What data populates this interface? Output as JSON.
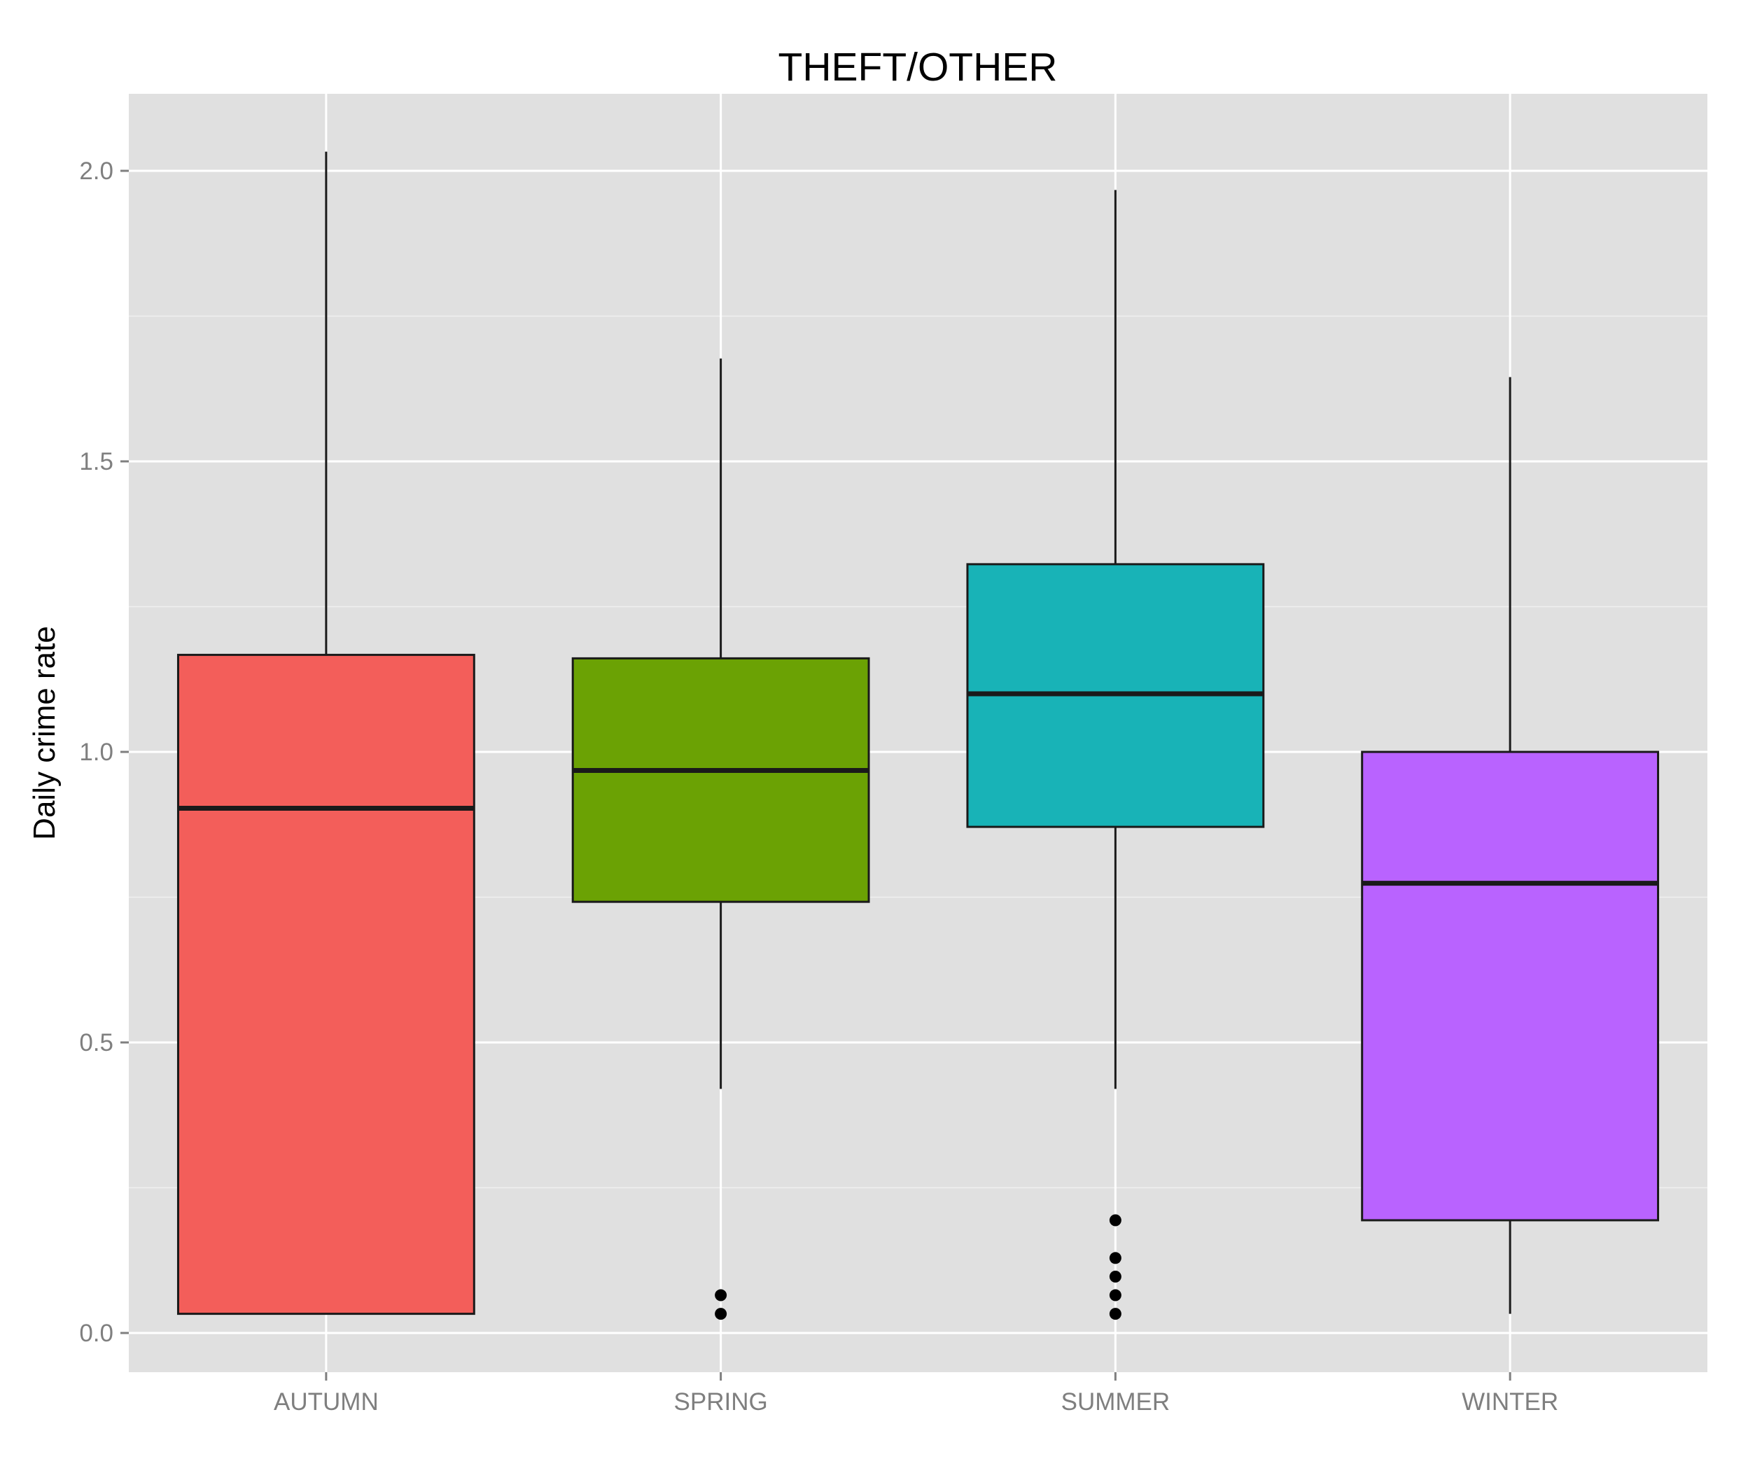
{
  "chart_data": {
    "type": "boxplot",
    "title": "THEFT/OTHER",
    "xlabel": "",
    "ylabel": "Daily crime rate",
    "ylim": [
      -0.07,
      2.13
    ],
    "yticks": [
      "0.0",
      "0.5",
      "1.0",
      "1.5",
      "2.0"
    ],
    "grid": true,
    "legend": "none",
    "categories": [
      "AUTUMN",
      "SPRING",
      "SUMMER",
      "WINTER"
    ],
    "boxes": [
      {
        "category": "AUTUMN",
        "whisker_low": 0.033,
        "q1": 0.033,
        "median": 0.903,
        "q3": 1.167,
        "whisker_high": 2.033,
        "outliers": [],
        "color": "#F35E5A"
      },
      {
        "category": "SPRING",
        "whisker_low": 0.42,
        "q1": 0.742,
        "median": 0.968,
        "q3": 1.161,
        "whisker_high": 1.677,
        "outliers": [
          0.033,
          0.065
        ],
        "color": "#6BA204"
      },
      {
        "category": "SUMMER",
        "whisker_low": 0.42,
        "q1": 0.871,
        "median": 1.1,
        "q3": 1.323,
        "whisker_high": 1.967,
        "outliers": [
          0.033,
          0.065,
          0.097,
          0.129,
          0.194
        ],
        "color": "#18B3B7"
      },
      {
        "category": "WINTER",
        "whisker_low": 0.033,
        "q1": 0.194,
        "median": 0.774,
        "q3": 1.0,
        "whisker_high": 1.645,
        "outliers": [],
        "color": "#B963FF"
      }
    ]
  }
}
